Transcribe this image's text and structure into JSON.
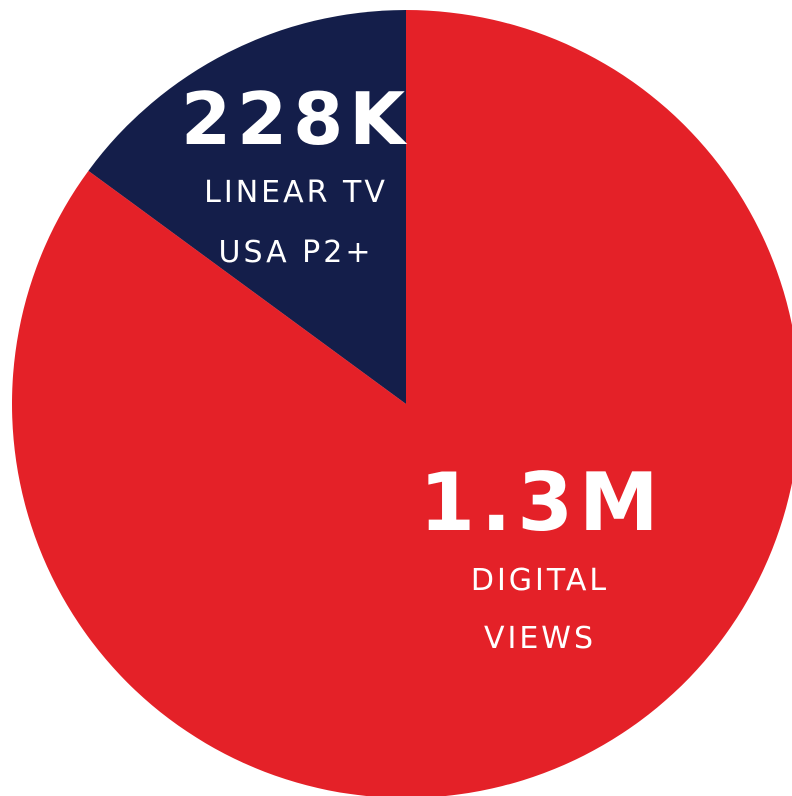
{
  "chart_data": {
    "type": "pie",
    "slices": [
      {
        "value_label": "228K",
        "label_lines": [
          "LINEAR TV",
          "USA P2+"
        ],
        "value": 228000,
        "color": "#141e4a"
      },
      {
        "value_label": "1.3M",
        "label_lines": [
          "DIGITAL",
          "VIEWS"
        ],
        "value": 1300000,
        "color": "#e42128"
      }
    ]
  }
}
